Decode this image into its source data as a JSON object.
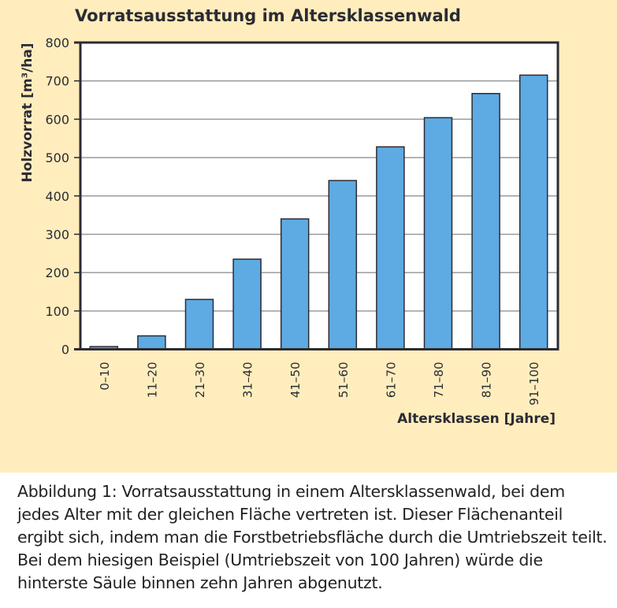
{
  "chart_data": {
    "type": "bar",
    "title": "Vorratsausstattung im Altersklassenwald",
    "xlabel": "Altersklassen [Jahre]",
    "ylabel": "Holzvorrat [m³/ha]",
    "categories": [
      "0–10",
      "11–20",
      "21–30",
      "31–40",
      "41–50",
      "51–60",
      "61–70",
      "71–80",
      "81–90",
      "91–100"
    ],
    "values": [
      7,
      35,
      130,
      235,
      340,
      440,
      528,
      604,
      667,
      715
    ],
    "ylim": [
      0,
      800
    ],
    "yticks": [
      0,
      100,
      200,
      300,
      400,
      500,
      600,
      700,
      800
    ],
    "grid": true,
    "colors": {
      "bar": "#5eaae2",
      "background": "#ffedbd",
      "grid": "#999b9b",
      "axis": "#2b2b33"
    }
  },
  "caption": "Abbildung 1: Vorratsausstattung in einem Altersklassenwald, bei dem jedes Alter mit der gleichen Fläche vertreten ist. Dieser Flächenanteil ergibt sich, indem man die Forstbetriebsfläche durch die Umtriebszeit teilt. Bei dem hiesigen Beispiel (Umtriebszeit von 100 Jahren) würde die hinterste Säule binnen zehn Jahren abgenutzt."
}
